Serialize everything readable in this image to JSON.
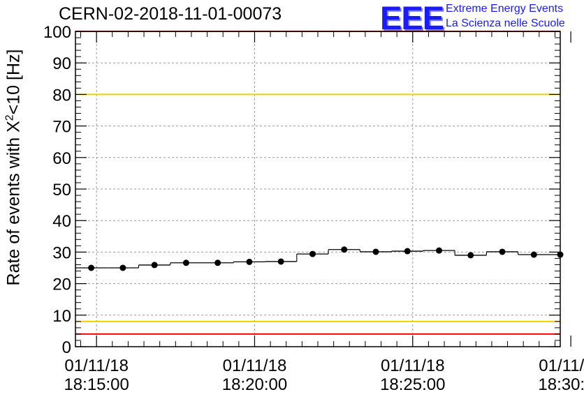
{
  "chart_data": {
    "type": "scatter",
    "title": "CERN-02-2018-11-01-00073",
    "ylabel": {
      "prefix": "Rate of events with X",
      "superscript": "2",
      "suffix": "<10 [Hz]"
    },
    "xlabel": "",
    "ylim": [
      0,
      100
    ],
    "yticks": [
      "0",
      "10",
      "20",
      "30",
      "40",
      "50",
      "60",
      "70",
      "80",
      "90",
      "100"
    ],
    "xlim": [
      "18:14:20",
      "18:29:40"
    ],
    "xticks": [
      {
        "time": "18:15:00",
        "date": "01/11/18",
        "clock": "18:15:00"
      },
      {
        "time": "18:20:00",
        "date": "01/11/18",
        "clock": "18:20:00"
      },
      {
        "time": "18:25:00",
        "date": "01/11/18",
        "clock": "18:25:00"
      },
      {
        "time": "18:30:00",
        "date": "01/11/18",
        "clock": "18:30:00"
      }
    ],
    "grid": true,
    "reference_lines": [
      {
        "y": 100,
        "color": "#ff0000"
      },
      {
        "y": 80,
        "color": "#f0d000"
      },
      {
        "y": 8,
        "color": "#f0d000"
      },
      {
        "y": 4,
        "color": "#ff0000"
      }
    ],
    "series": [
      {
        "color": "#000000",
        "points": [
          {
            "x": "18:14:50",
            "y": 25.0
          },
          {
            "x": "18:15:50",
            "y": 25.0
          },
          {
            "x": "18:16:50",
            "y": 25.9
          },
          {
            "x": "18:17:50",
            "y": 26.6
          },
          {
            "x": "18:18:50",
            "y": 26.6
          },
          {
            "x": "18:19:50",
            "y": 26.9
          },
          {
            "x": "18:20:50",
            "y": 27.0
          },
          {
            "x": "18:21:50",
            "y": 29.4
          },
          {
            "x": "18:22:50",
            "y": 30.8
          },
          {
            "x": "18:23:50",
            "y": 30.1
          },
          {
            "x": "18:24:50",
            "y": 30.3
          },
          {
            "x": "18:25:50",
            "y": 30.5
          },
          {
            "x": "18:26:50",
            "y": 29.0
          },
          {
            "x": "18:27:50",
            "y": 30.1
          },
          {
            "x": "18:28:50",
            "y": 29.2
          },
          {
            "x": "18:29:40",
            "y": 29.2
          }
        ]
      }
    ]
  },
  "logo": {
    "mark": "EEE",
    "line1": "Extreme Energy Events",
    "line2": "La Scienza nelle Scuole"
  }
}
